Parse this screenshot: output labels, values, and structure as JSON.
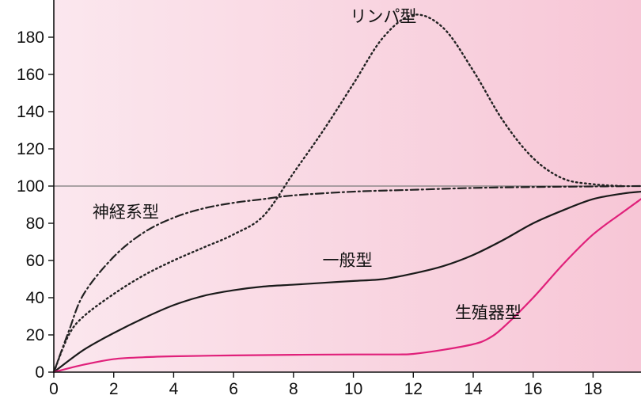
{
  "chart_data": {
    "type": "line",
    "title": "",
    "xlabel": "",
    "ylabel": "",
    "xlim": [
      0,
      19.6
    ],
    "ylim": [
      0,
      200
    ],
    "x_ticks": [
      0,
      2,
      4,
      6,
      8,
      10,
      12,
      14,
      16,
      18
    ],
    "y_ticks": [
      0,
      20,
      40,
      60,
      80,
      100,
      120,
      140,
      160,
      180
    ],
    "reference_line_y": 100,
    "grid": false,
    "legend": "none",
    "colors": {
      "background_left": "#fbe7ee",
      "background_right": "#f7c6d6",
      "axis": "#111111",
      "reference_line": "#7a7a7a",
      "lymphoid": "#222222",
      "neural": "#222222",
      "general": "#1a1a1a",
      "reproductive": "#e0207a"
    },
    "series": [
      {
        "name": "リンパ型",
        "key": "lymphoid",
        "style": "dotted",
        "points": [
          [
            0,
            0
          ],
          [
            0.5,
            20
          ],
          [
            1,
            30
          ],
          [
            2,
            42
          ],
          [
            3,
            52
          ],
          [
            4,
            60
          ],
          [
            5,
            67
          ],
          [
            6,
            74
          ],
          [
            7,
            84
          ],
          [
            8,
            107
          ],
          [
            9,
            130
          ],
          [
            10,
            155
          ],
          [
            11,
            180
          ],
          [
            12,
            192
          ],
          [
            13,
            185
          ],
          [
            14,
            162
          ],
          [
            15,
            135
          ],
          [
            16,
            115
          ],
          [
            17,
            104
          ],
          [
            18,
            101
          ],
          [
            19,
            100
          ]
        ]
      },
      {
        "name": "神経系型",
        "key": "neural",
        "style": "dashdot",
        "points": [
          [
            0,
            0
          ],
          [
            0.5,
            22
          ],
          [
            1,
            42
          ],
          [
            2,
            62
          ],
          [
            3,
            75
          ],
          [
            4,
            83
          ],
          [
            5,
            88
          ],
          [
            6,
            91
          ],
          [
            7,
            93
          ],
          [
            8,
            95
          ],
          [
            10,
            97
          ],
          [
            12,
            98
          ],
          [
            14,
            99
          ],
          [
            16,
            99.5
          ],
          [
            18,
            99.8
          ],
          [
            19.6,
            100
          ]
        ]
      },
      {
        "name": "一般型",
        "key": "general",
        "style": "solid",
        "points": [
          [
            0,
            0
          ],
          [
            1,
            12
          ],
          [
            2,
            21
          ],
          [
            3,
            29
          ],
          [
            4,
            36
          ],
          [
            5,
            41
          ],
          [
            6,
            44
          ],
          [
            7,
            46
          ],
          [
            8,
            47
          ],
          [
            9,
            48
          ],
          [
            10,
            49
          ],
          [
            11,
            50
          ],
          [
            12,
            53
          ],
          [
            13,
            57
          ],
          [
            14,
            63
          ],
          [
            15,
            71
          ],
          [
            16,
            80
          ],
          [
            17,
            87
          ],
          [
            18,
            93
          ],
          [
            19,
            96
          ],
          [
            19.6,
            97
          ]
        ]
      },
      {
        "name": "生殖器型",
        "key": "reproductive",
        "style": "solid",
        "points": [
          [
            0,
            0
          ],
          [
            1,
            4
          ],
          [
            2,
            7
          ],
          [
            3,
            8
          ],
          [
            4,
            8.5
          ],
          [
            6,
            9
          ],
          [
            8,
            9.3
          ],
          [
            10,
            9.5
          ],
          [
            11.5,
            9.5
          ],
          [
            12,
            9.8
          ],
          [
            13,
            12
          ],
          [
            14,
            15
          ],
          [
            14.5,
            18
          ],
          [
            15,
            24
          ],
          [
            16,
            40
          ],
          [
            17,
            58
          ],
          [
            18,
            74
          ],
          [
            19,
            86
          ],
          [
            19.6,
            93
          ]
        ]
      }
    ],
    "annotations": [
      {
        "text": "リンパ型",
        "x": 11.0,
        "y": 188
      },
      {
        "text": "神経系型",
        "x": 2.4,
        "y": 83
      },
      {
        "text": "一般型",
        "x": 9.8,
        "y": 57
      },
      {
        "text": "生殖器型",
        "x": 14.5,
        "y": 29
      }
    ]
  }
}
